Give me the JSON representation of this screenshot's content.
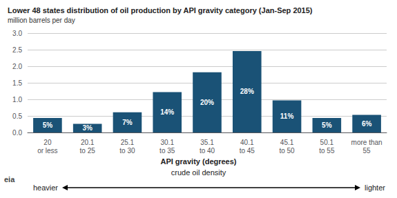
{
  "chart_data": {
    "type": "bar",
    "title": "Lower 48 states distribution of oil production by API gravity category (Jan-Sep 2015)",
    "subtitle": "million barrels per day",
    "categories": [
      "20\nor less",
      "20.1\nto 25",
      "25.1\nto 30",
      "30.1\nto 35",
      "35.1\nto 40",
      "40.1\nto 45",
      "45.1\nto 50",
      "50.1\nto 55",
      "more than\n55"
    ],
    "values": [
      0.44,
      0.26,
      0.61,
      1.22,
      1.82,
      2.46,
      0.97,
      0.44,
      0.53
    ],
    "percentages": [
      "5%",
      "3%",
      "7%",
      "14%",
      "20%",
      "28%",
      "11%",
      "5%",
      "6%"
    ],
    "color": "#1a5276",
    "xlabel": "API gravity (degrees)",
    "xlabel_note": "crude oil density",
    "arrow_label_left": "heavier",
    "arrow_label_right": "lighter",
    "logo_text": "eia",
    "ylim": [
      0,
      3.0
    ],
    "yticks": [
      {
        "value": 0,
        "label": "0.0"
      },
      0.5,
      {
        "value": 1,
        "label": "1.0"
      },
      1.5,
      {
        "value": 2,
        "label": "2.0"
      },
      2.5,
      {
        "value": 3,
        "label": "3.0"
      }
    ],
    "grid": true
  }
}
